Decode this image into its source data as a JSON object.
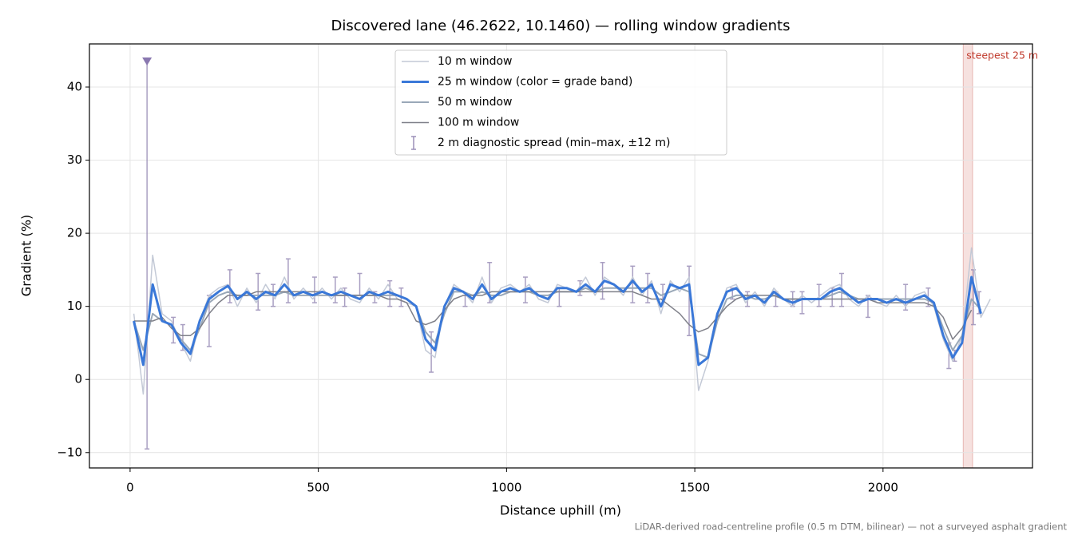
{
  "chart_data": {
    "type": "line",
    "title": "Discovered lane (46.2622, 10.1460) — rolling window gradients",
    "xlabel": "Distance uphill (m)",
    "ylabel": "Gradient (%)",
    "footnote": "LiDAR-derived road-centreline profile (0.5 m DTM, bilinear) — not a surveyed asphalt gradient",
    "xlim": [
      -108,
      2397
    ],
    "ylim": [
      -12.1,
      45.9
    ],
    "xticks": [
      0,
      500,
      1000,
      1500,
      2000
    ],
    "yticks": [
      {
        "value": -10,
        "label": "−10"
      },
      0,
      10,
      20,
      30,
      40
    ],
    "grid": true,
    "legend": "upper center",
    "x": [
      10,
      35,
      60,
      85,
      110,
      135,
      160,
      185,
      210,
      235,
      260,
      285,
      310,
      335,
      360,
      385,
      410,
      435,
      460,
      485,
      510,
      535,
      560,
      585,
      610,
      635,
      660,
      685,
      710,
      735,
      760,
      785,
      810,
      835,
      860,
      885,
      910,
      935,
      960,
      985,
      1010,
      1035,
      1060,
      1085,
      1110,
      1135,
      1160,
      1185,
      1210,
      1235,
      1260,
      1285,
      1310,
      1335,
      1360,
      1385,
      1410,
      1435,
      1460,
      1485,
      1510,
      1535,
      1560,
      1585,
      1610,
      1635,
      1660,
      1685,
      1710,
      1735,
      1760,
      1785,
      1810,
      1835,
      1860,
      1885,
      1910,
      1935,
      1960,
      1985,
      2010,
      2035,
      2060,
      2085,
      2110,
      2135,
      2160,
      2185,
      2210,
      2235,
      2260,
      2285
    ],
    "series": [
      {
        "name": "10 m window",
        "color": "#c3c9d6",
        "width": 1.5,
        "values": [
          9,
          -2,
          17,
          9,
          8,
          5,
          2.5,
          8,
          11.5,
          12.5,
          13,
          10,
          12.5,
          10.5,
          13,
          11,
          14,
          11,
          12.5,
          11,
          12.5,
          11,
          12.5,
          11,
          10.5,
          12.5,
          11,
          13,
          11,
          10.5,
          10,
          4,
          3,
          10,
          13,
          12,
          10.5,
          14,
          10.5,
          12.5,
          13,
          12,
          13,
          11,
          10.5,
          13,
          12.5,
          12,
          14,
          11.5,
          14,
          13,
          11.5,
          14,
          11.5,
          13.5,
          9,
          13.5,
          12,
          14,
          -1.5,
          2.5,
          8.5,
          12.5,
          13,
          10.5,
          12,
          10,
          12.5,
          11,
          10,
          11.5,
          10.5,
          11.5,
          12.5,
          13,
          11,
          10,
          11.5,
          10.5,
          10,
          11.5,
          10,
          11.5,
          12,
          10,
          5.5,
          2.5,
          6,
          18,
          8.5,
          11
        ]
      },
      {
        "name": "25 m window (color = grade band)",
        "color": "#3a78d8",
        "width": 3,
        "values": [
          8,
          2,
          13,
          8,
          7.5,
          5,
          3.5,
          8,
          11,
          12,
          12.8,
          11,
          12,
          11,
          12,
          11.5,
          13,
          11.5,
          12,
          11.5,
          12,
          11.5,
          12,
          11.5,
          11,
          12,
          11.5,
          12,
          11.5,
          11,
          10,
          5.5,
          4,
          10,
          12.5,
          12,
          11,
          13,
          11,
          12,
          12.5,
          12,
          12.5,
          11.5,
          11,
          12.5,
          12.5,
          12,
          13,
          12,
          13.5,
          13,
          12,
          13.5,
          12,
          13,
          10,
          13,
          12.5,
          13,
          2,
          3,
          9,
          12,
          12.5,
          11,
          11.5,
          10.5,
          12,
          11,
          10.5,
          11,
          11,
          11,
          12,
          12.5,
          11.5,
          10.5,
          11,
          11,
          10.5,
          11,
          10.5,
          11,
          11.5,
          10.5,
          6,
          3,
          5,
          14,
          9,
          null
        ]
      },
      {
        "name": "50 m window",
        "color": "#9aa8b8",
        "width": 2,
        "values": [
          8,
          4,
          9,
          8,
          7.5,
          5.5,
          4,
          7,
          10.5,
          11.5,
          12,
          11.5,
          11.5,
          11.5,
          11.5,
          11.5,
          12,
          11.5,
          11.5,
          11.5,
          11.5,
          11.5,
          11.5,
          11.5,
          11.5,
          11.5,
          11.5,
          11.5,
          11.5,
          11,
          10,
          6.5,
          5,
          9,
          12,
          12,
          11.5,
          12,
          11.5,
          11.5,
          12,
          12,
          12,
          11.5,
          11.5,
          12,
          12,
          12,
          12.5,
          12,
          12.5,
          12.5,
          12.5,
          12.5,
          12.5,
          12.5,
          11.5,
          12,
          12.5,
          12,
          3.5,
          3,
          8,
          11,
          11.5,
          11.5,
          11,
          11,
          11.5,
          11,
          11,
          11,
          11,
          11,
          11.5,
          12,
          11.5,
          11,
          11,
          11,
          11,
          11,
          11,
          11,
          11,
          10.5,
          7,
          4,
          6,
          11,
          9.5,
          null
        ]
      },
      {
        "name": "100 m window",
        "color": "#7f8089",
        "width": 1.5,
        "values": [
          8,
          8,
          8,
          8.5,
          7,
          6,
          6,
          7,
          9,
          10.5,
          11.5,
          11.5,
          11.5,
          12,
          12,
          12,
          12,
          12,
          12,
          12,
          12,
          11.5,
          11.5,
          11.5,
          11.5,
          11.5,
          11.5,
          11,
          11,
          10.5,
          8,
          7.5,
          8,
          9.5,
          11,
          11.5,
          11.5,
          11.5,
          12,
          12,
          12,
          12,
          12,
          12,
          12,
          12,
          12,
          12,
          12,
          12,
          12,
          12,
          12,
          12,
          11.5,
          11,
          11,
          10,
          9,
          7.5,
          6.5,
          7,
          8.5,
          10,
          11,
          11.5,
          11.5,
          11.5,
          11.5,
          11,
          11,
          11,
          11,
          11,
          11,
          11,
          11,
          11,
          11,
          10.5,
          10.5,
          10.5,
          10.5,
          10.5,
          10.5,
          10,
          8.5,
          5.5,
          7,
          9.5,
          null,
          null
        ]
      }
    ],
    "errorbars": {
      "name": "2 m diagnostic spread (min–max, ±12 m)",
      "color": "#9b8fb8",
      "x": [
        45,
        115,
        140,
        210,
        265,
        340,
        380,
        420,
        490,
        545,
        570,
        610,
        650,
        690,
        720,
        800,
        890,
        955,
        1050,
        1140,
        1195,
        1255,
        1335,
        1375,
        1415,
        1485,
        1600,
        1640,
        1715,
        1760,
        1785,
        1830,
        1865,
        1890,
        1960,
        2060,
        2120,
        2175,
        2190,
        2240,
        2255
      ],
      "low": [
        -9.5,
        5,
        4,
        4.5,
        10.5,
        9.5,
        10,
        10.5,
        10.5,
        10.5,
        10,
        11.5,
        10.5,
        10,
        10,
        1,
        10,
        10.5,
        10.5,
        10,
        11.5,
        11,
        10.5,
        10.5,
        11,
        6,
        11,
        10,
        10,
        10,
        9,
        10,
        10,
        10,
        8.5,
        9.5,
        10,
        1.5,
        2.5,
        7.5,
        9
      ],
      "high": [
        43.5,
        8.5,
        7.5,
        11.5,
        15,
        14.5,
        13,
        16.5,
        14,
        14,
        12.5,
        14.5,
        12,
        13.5,
        12.5,
        6.5,
        11.5,
        16,
        14,
        12.5,
        13.5,
        16,
        15.5,
        14.5,
        13,
        15.5,
        12.5,
        12,
        12,
        12,
        12,
        13,
        12.5,
        14.5,
        11.5,
        13,
        12.5,
        5,
        4,
        15,
        12
      ]
    },
    "peak": {
      "x": 45,
      "y": 43.5,
      "color": "#8a78b0"
    },
    "highlight": {
      "x": [
        2213,
        2238
      ],
      "label": "steepest 25 m",
      "color": "#c0392b"
    }
  }
}
